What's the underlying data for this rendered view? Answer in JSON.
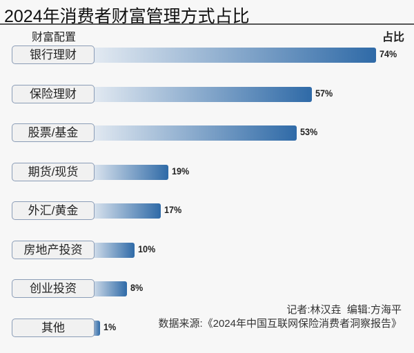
{
  "chart_data": {
    "type": "bar",
    "orientation": "horizontal",
    "title": "2024年消费者财富管理方式占比",
    "xlabel": "占比",
    "ylabel": "财富配置",
    "categories": [
      "银行理财",
      "保险理财",
      "股票/基金",
      "期货/现货",
      "外汇/黄金",
      "房地产投资",
      "创业投资",
      "其他"
    ],
    "values": [
      74,
      57,
      53,
      19,
      17,
      10,
      8,
      1
    ],
    "value_labels": [
      "74%",
      "57%",
      "53%",
      "19%",
      "17%",
      "10%",
      "8%",
      "1%"
    ],
    "unit": "%",
    "xlim": [
      0,
      74
    ],
    "bar_color_end": "#2f6aa7",
    "bar_color_start": "#e6ecf3"
  },
  "footer": {
    "credit": "记者:林汉垚  编辑:方海平",
    "source": "数据来源:《2024年中国互联网保险消费者洞察报告》"
  }
}
